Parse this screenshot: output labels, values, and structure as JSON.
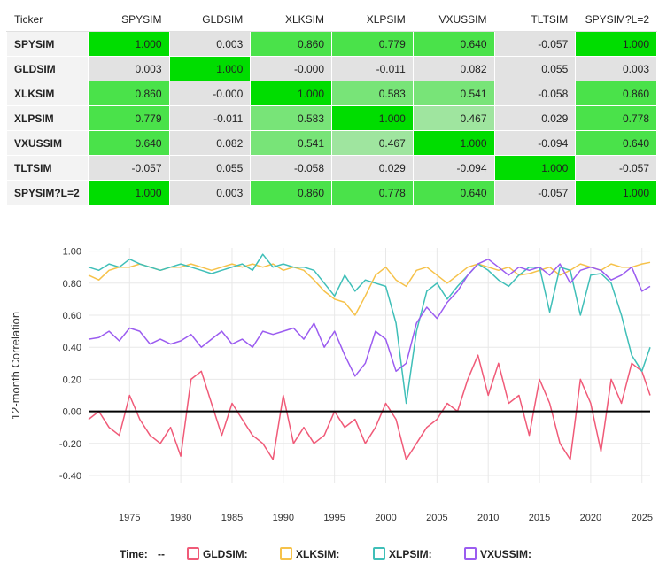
{
  "table": {
    "header_label": "Ticker",
    "columns": [
      "SPYSIM",
      "GLDSIM",
      "XLKSIM",
      "XLPSIM",
      "VXUSSIM",
      "TLTSIM",
      "SPYSIM?L=2"
    ],
    "rows": [
      {
        "label": "SPYSIM",
        "values": [
          "1.000",
          "0.003",
          "0.860",
          "0.779",
          "0.640",
          "-0.057",
          "1.000"
        ]
      },
      {
        "label": "GLDSIM",
        "values": [
          "0.003",
          "1.000",
          "-0.000",
          "-0.011",
          "0.082",
          "0.055",
          "0.003"
        ]
      },
      {
        "label": "XLKSIM",
        "values": [
          "0.860",
          "-0.000",
          "1.000",
          "0.583",
          "0.541",
          "-0.058",
          "0.860"
        ]
      },
      {
        "label": "XLPSIM",
        "values": [
          "0.779",
          "-0.011",
          "0.583",
          "1.000",
          "0.467",
          "0.029",
          "0.778"
        ]
      },
      {
        "label": "VXUSSIM",
        "values": [
          "0.640",
          "0.082",
          "0.541",
          "0.467",
          "1.000",
          "-0.094",
          "0.640"
        ]
      },
      {
        "label": "TLTSIM",
        "values": [
          "-0.057",
          "0.055",
          "-0.058",
          "0.029",
          "-0.094",
          "1.000",
          "-0.057"
        ]
      },
      {
        "label": "SPYSIM?L=2",
        "values": [
          "1.000",
          "0.003",
          "0.860",
          "0.778",
          "0.640",
          "-0.057",
          "1.000"
        ]
      }
    ]
  },
  "chart_data": {
    "type": "line",
    "xlabel": "",
    "ylabel": "12-month Correlation",
    "xlim": [
      1971,
      2025.8
    ],
    "ylim": [
      -0.45,
      1.02
    ],
    "x_ticks": [
      1975,
      1980,
      1985,
      1990,
      1995,
      2000,
      2005,
      2010,
      2015,
      2020,
      2025
    ],
    "y_ticks": [
      -0.4,
      -0.2,
      0.0,
      0.2,
      0.4,
      0.6,
      0.8,
      1.0
    ],
    "y_tick_labels": [
      "-0.40",
      "-0.20",
      "0.00",
      "0.20",
      "0.40",
      "0.60",
      "0.80",
      "1.00"
    ],
    "grid": true,
    "zero_line": true,
    "legend_placement": "bottom",
    "legend_time_label": "Time:",
    "legend_time_value": "--",
    "series": [
      {
        "name": "GLDSIM:",
        "color": "#f05a78",
        "x": [
          1971,
          1972,
          1973,
          1974,
          1975,
          1976,
          1977,
          1978,
          1979,
          1980,
          1981,
          1982,
          1983,
          1984,
          1985,
          1986,
          1987,
          1988,
          1989,
          1990,
          1991,
          1992,
          1993,
          1994,
          1995,
          1996,
          1997,
          1998,
          1999,
          2000,
          2001,
          2002,
          2003,
          2004,
          2005,
          2006,
          2007,
          2008,
          2009,
          2010,
          2011,
          2012,
          2013,
          2014,
          2015,
          2016,
          2017,
          2018,
          2019,
          2020,
          2021,
          2022,
          2023,
          2024,
          2025,
          2025.8
        ],
        "values": [
          -0.05,
          0.0,
          -0.1,
          -0.15,
          0.1,
          -0.05,
          -0.15,
          -0.2,
          -0.1,
          -0.28,
          0.2,
          0.25,
          0.05,
          -0.15,
          0.05,
          -0.05,
          -0.15,
          -0.2,
          -0.3,
          0.1,
          -0.2,
          -0.1,
          -0.2,
          -0.15,
          0.0,
          -0.1,
          -0.05,
          -0.2,
          -0.1,
          0.05,
          -0.05,
          -0.3,
          -0.2,
          -0.1,
          -0.05,
          0.05,
          0.0,
          0.2,
          0.35,
          0.1,
          0.3,
          0.05,
          0.1,
          -0.15,
          0.2,
          0.05,
          -0.2,
          -0.3,
          0.2,
          0.05,
          -0.25,
          0.2,
          0.05,
          0.3,
          0.25,
          0.1
        ]
      },
      {
        "name": "XLKSIM:",
        "color": "#f6c24a",
        "x": [
          1971,
          1972,
          1973,
          1974,
          1975,
          1976,
          1977,
          1978,
          1979,
          1980,
          1981,
          1982,
          1983,
          1984,
          1985,
          1986,
          1987,
          1988,
          1989,
          1990,
          1991,
          1992,
          1993,
          1994,
          1995,
          1996,
          1997,
          1998,
          1999,
          2000,
          2001,
          2002,
          2003,
          2004,
          2005,
          2006,
          2007,
          2008,
          2009,
          2010,
          2011,
          2012,
          2013,
          2014,
          2015,
          2016,
          2017,
          2018,
          2019,
          2020,
          2021,
          2022,
          2023,
          2024,
          2025,
          2025.8
        ],
        "values": [
          0.85,
          0.82,
          0.88,
          0.9,
          0.9,
          0.92,
          0.9,
          0.88,
          0.9,
          0.9,
          0.92,
          0.9,
          0.88,
          0.9,
          0.92,
          0.9,
          0.92,
          0.9,
          0.92,
          0.88,
          0.9,
          0.88,
          0.82,
          0.75,
          0.7,
          0.68,
          0.6,
          0.72,
          0.85,
          0.9,
          0.82,
          0.78,
          0.88,
          0.9,
          0.85,
          0.8,
          0.85,
          0.9,
          0.92,
          0.9,
          0.88,
          0.9,
          0.85,
          0.86,
          0.88,
          0.9,
          0.85,
          0.88,
          0.92,
          0.9,
          0.88,
          0.92,
          0.9,
          0.9,
          0.92,
          0.93
        ]
      },
      {
        "name": "XLPSIM:",
        "color": "#3fbfb8",
        "x": [
          1971,
          1972,
          1973,
          1974,
          1975,
          1976,
          1977,
          1978,
          1979,
          1980,
          1981,
          1982,
          1983,
          1984,
          1985,
          1986,
          1987,
          1988,
          1989,
          1990,
          1991,
          1992,
          1993,
          1994,
          1995,
          1996,
          1997,
          1998,
          1999,
          2000,
          2001,
          2002,
          2003,
          2004,
          2005,
          2006,
          2007,
          2008,
          2009,
          2010,
          2011,
          2012,
          2013,
          2014,
          2015,
          2016,
          2017,
          2018,
          2019,
          2020,
          2021,
          2022,
          2023,
          2024,
          2025,
          2025.8
        ],
        "values": [
          0.9,
          0.88,
          0.92,
          0.9,
          0.95,
          0.92,
          0.9,
          0.88,
          0.9,
          0.92,
          0.9,
          0.88,
          0.86,
          0.88,
          0.9,
          0.92,
          0.88,
          0.98,
          0.9,
          0.92,
          0.9,
          0.9,
          0.88,
          0.8,
          0.72,
          0.85,
          0.75,
          0.82,
          0.8,
          0.78,
          0.55,
          0.05,
          0.5,
          0.75,
          0.8,
          0.7,
          0.78,
          0.85,
          0.92,
          0.88,
          0.82,
          0.78,
          0.85,
          0.9,
          0.9,
          0.62,
          0.9,
          0.88,
          0.6,
          0.85,
          0.86,
          0.8,
          0.6,
          0.35,
          0.25,
          0.4
        ]
      },
      {
        "name": "VXUSSIM:",
        "color": "#9b5cf0",
        "x": [
          1971,
          1972,
          1973,
          1974,
          1975,
          1976,
          1977,
          1978,
          1979,
          1980,
          1981,
          1982,
          1983,
          1984,
          1985,
          1986,
          1987,
          1988,
          1989,
          1990,
          1991,
          1992,
          1993,
          1994,
          1995,
          1996,
          1997,
          1998,
          1999,
          2000,
          2001,
          2002,
          2003,
          2004,
          2005,
          2006,
          2007,
          2008,
          2009,
          2010,
          2011,
          2012,
          2013,
          2014,
          2015,
          2016,
          2017,
          2018,
          2019,
          2020,
          2021,
          2022,
          2023,
          2024,
          2025,
          2025.8
        ],
        "values": [
          0.45,
          0.46,
          0.5,
          0.44,
          0.52,
          0.5,
          0.42,
          0.45,
          0.42,
          0.44,
          0.48,
          0.4,
          0.45,
          0.5,
          0.42,
          0.45,
          0.4,
          0.5,
          0.48,
          0.5,
          0.52,
          0.45,
          0.55,
          0.4,
          0.5,
          0.35,
          0.22,
          0.3,
          0.5,
          0.45,
          0.25,
          0.3,
          0.55,
          0.65,
          0.58,
          0.68,
          0.75,
          0.85,
          0.92,
          0.95,
          0.9,
          0.85,
          0.9,
          0.88,
          0.9,
          0.85,
          0.92,
          0.8,
          0.88,
          0.9,
          0.88,
          0.82,
          0.85,
          0.9,
          0.75,
          0.78
        ]
      }
    ]
  },
  "colors": {
    "tier_1": "#00dd00",
    "tier_2": "#4ae24a",
    "tier_3": "#78e478",
    "tier_4": "#9fe59f",
    "neutral": "#e2e2e2",
    "zero_line": "#000000",
    "grid": "#e8e8e8"
  }
}
